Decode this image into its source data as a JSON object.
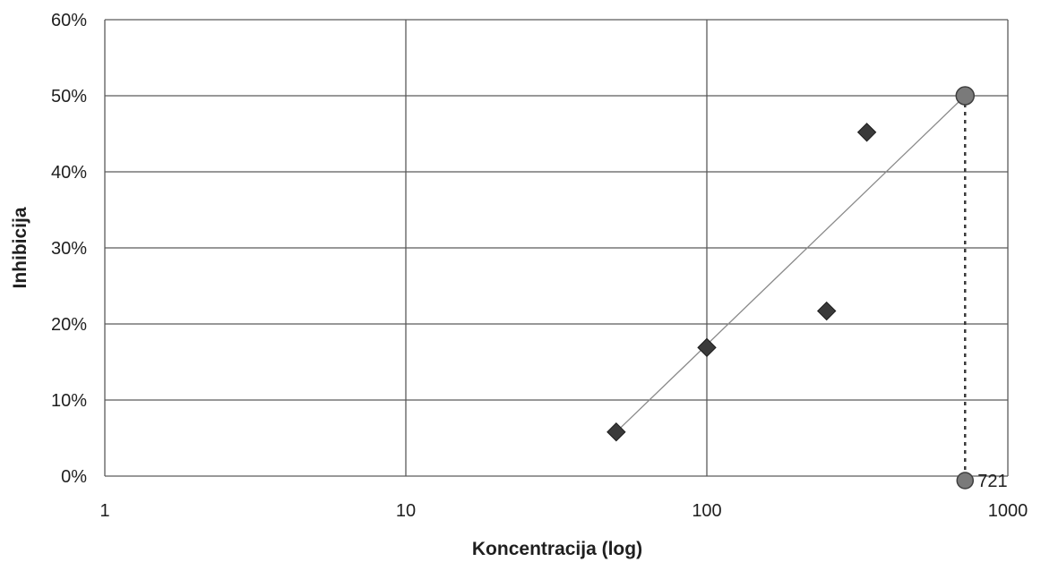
{
  "chart_data": {
    "type": "scatter",
    "title": "",
    "xlabel": "Koncentracija (log)",
    "ylabel": "Inhibicija",
    "x_scale": "log",
    "xlim": [
      1,
      1000
    ],
    "ylim": [
      0,
      0.6
    ],
    "x_ticks": [
      1,
      10,
      100,
      1000
    ],
    "x_tick_labels": [
      "1",
      "10",
      "100",
      "1000"
    ],
    "y_ticks": [
      0,
      0.1,
      0.2,
      0.3,
      0.4,
      0.5,
      0.6
    ],
    "y_tick_labels": [
      "0%",
      "10%",
      "20%",
      "30%",
      "40%",
      "50%",
      "60%"
    ],
    "grid": true,
    "legend": "none",
    "series": [
      {
        "marker": "diamond",
        "x": [
          50,
          100,
          250,
          340
        ],
        "y": [
          0.058,
          0.169,
          0.217,
          0.452
        ]
      }
    ],
    "trendline": {
      "x": [
        50,
        721
      ],
      "y": [
        0.058,
        0.5
      ]
    },
    "ic50_marker": {
      "x": 721,
      "y": 0.5
    },
    "ic50_axis_point": {
      "x": 721,
      "y": 0,
      "label": "721"
    },
    "colors": {
      "grid": "#5a5a5a",
      "diamond": "#3a3a3a",
      "circle": "#7a7a7a",
      "trendline": "#8a8a8a",
      "text": "#1f1f1f"
    }
  }
}
